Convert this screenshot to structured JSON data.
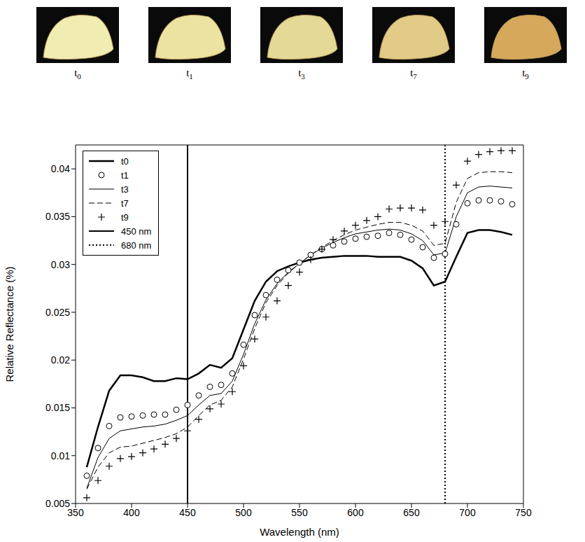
{
  "photo_labels": [
    "t0",
    "t1",
    "t3",
    "t7",
    "t9"
  ],
  "chart_data": {
    "type": "line",
    "x_label": "Wavelength (nm)",
    "y_label": "Relative Reflectance (%)",
    "x": [
      360,
      370,
      380,
      390,
      400,
      410,
      420,
      430,
      440,
      450,
      460,
      470,
      480,
      490,
      500,
      510,
      520,
      530,
      540,
      550,
      560,
      570,
      580,
      590,
      600,
      610,
      620,
      630,
      640,
      650,
      660,
      670,
      680,
      690,
      700,
      710,
      720,
      730,
      740
    ],
    "xlim": [
      350,
      750
    ],
    "xticks": [
      350,
      400,
      450,
      500,
      550,
      600,
      650,
      700,
      750
    ],
    "ylim": [
      0.005,
      0.0425
    ],
    "yticks": [
      0.005,
      0.01,
      0.015,
      0.02,
      0.025,
      0.03,
      0.035,
      0.04
    ],
    "grid": false,
    "legend": "upper left",
    "series": [
      {
        "name": "t0",
        "color": "#000000",
        "line_style": "solid",
        "marker": "none",
        "values": [
          0.0088,
          0.013,
          0.0168,
          0.0184,
          0.0184,
          0.0182,
          0.0178,
          0.0178,
          0.0181,
          0.018,
          0.0186,
          0.0195,
          0.0192,
          0.0202,
          0.0232,
          0.0262,
          0.0282,
          0.0293,
          0.0298,
          0.0302,
          0.0305,
          0.0307,
          0.0308,
          0.0309,
          0.0309,
          0.0309,
          0.0308,
          0.0308,
          0.0308,
          0.0304,
          0.0296,
          0.0278,
          0.0282,
          0.0308,
          0.0333,
          0.0336,
          0.0336,
          0.0334,
          0.0331
        ]
      },
      {
        "name": "t1",
        "color": "#000000",
        "line_style": "none",
        "marker": "circle",
        "values": [
          0.0079,
          0.0108,
          0.0131,
          0.014,
          0.0141,
          0.0142,
          0.0143,
          0.0143,
          0.0148,
          0.0153,
          0.0163,
          0.0172,
          0.0174,
          0.0186,
          0.0216,
          0.0247,
          0.0268,
          0.0284,
          0.0294,
          0.0302,
          0.031,
          0.0316,
          0.032,
          0.0324,
          0.0327,
          0.0329,
          0.033,
          0.0333,
          0.0331,
          0.0326,
          0.0318,
          0.0307,
          0.0311,
          0.0342,
          0.0364,
          0.0367,
          0.0367,
          0.0366,
          0.0363
        ]
      },
      {
        "name": "t3",
        "color": "#000000",
        "line_style": "solid",
        "marker": "none",
        "values": [
          0.0066,
          0.0098,
          0.0118,
          0.0126,
          0.0128,
          0.013,
          0.0131,
          0.0133,
          0.0137,
          0.0142,
          0.0153,
          0.0163,
          0.0165,
          0.0178,
          0.0206,
          0.0238,
          0.0263,
          0.028,
          0.0292,
          0.0301,
          0.031,
          0.0317,
          0.0323,
          0.0328,
          0.0332,
          0.0334,
          0.0336,
          0.0337,
          0.0336,
          0.0332,
          0.0325,
          0.031,
          0.0312,
          0.035,
          0.0375,
          0.0381,
          0.0382,
          0.0381,
          0.038
        ]
      },
      {
        "name": "t7",
        "color": "#000000",
        "line_style": "dashed",
        "marker": "none",
        "values": [
          0.0065,
          0.0088,
          0.0103,
          0.0109,
          0.011,
          0.0113,
          0.0116,
          0.0119,
          0.0123,
          0.013,
          0.0142,
          0.0153,
          0.0158,
          0.0172,
          0.0201,
          0.0233,
          0.026,
          0.0278,
          0.0291,
          0.0301,
          0.031,
          0.0318,
          0.0325,
          0.0331,
          0.0336,
          0.0339,
          0.0342,
          0.0344,
          0.0344,
          0.0341,
          0.0335,
          0.032,
          0.0322,
          0.0365,
          0.039,
          0.0396,
          0.0397,
          0.0397,
          0.0396
        ]
      },
      {
        "name": "t9",
        "color": "#000000",
        "line_style": "none",
        "marker": "plus",
        "values": [
          0.0056,
          0.0074,
          0.0089,
          0.0097,
          0.0099,
          0.0103,
          0.0107,
          0.0112,
          0.0118,
          0.0126,
          0.0138,
          0.0149,
          0.0154,
          0.0167,
          0.0194,
          0.0222,
          0.0245,
          0.0262,
          0.0278,
          0.0292,
          0.0305,
          0.0316,
          0.0326,
          0.0335,
          0.0341,
          0.0346,
          0.035,
          0.0358,
          0.0359,
          0.0359,
          0.0357,
          0.0341,
          0.0345,
          0.0383,
          0.0408,
          0.0415,
          0.0418,
          0.0419,
          0.0419
        ]
      }
    ],
    "vlines": [
      {
        "name": "450 nm",
        "x": 450,
        "color": "#000000",
        "line_style": "solid"
      },
      {
        "name": "680 nm",
        "x": 680,
        "color": "#000000",
        "line_style": "dotted"
      }
    ]
  }
}
